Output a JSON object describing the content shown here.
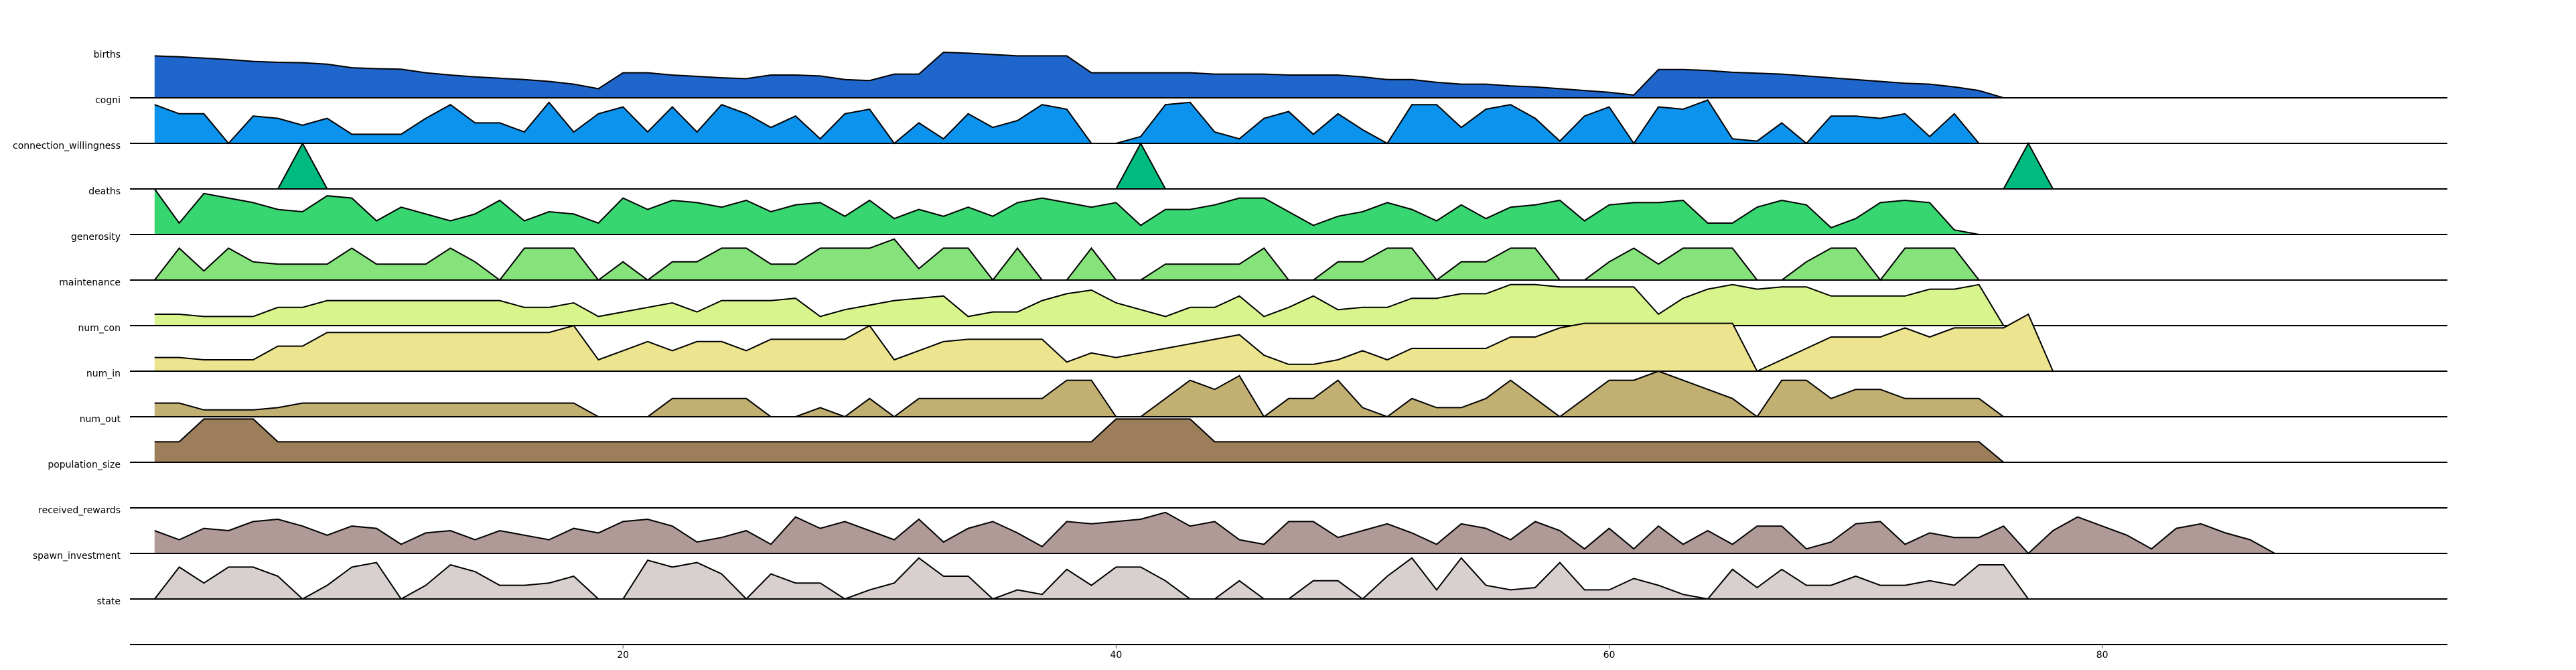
{
  "chart_data": {
    "type": "area",
    "title": "",
    "xlabel": "",
    "ylabel": "",
    "xlim": [
      0,
      94
    ],
    "x_ticks": [
      20,
      40,
      60,
      80
    ],
    "grid": false,
    "legend": "none",
    "series": [
      {
        "name": "births",
        "color": "#1f66cc",
        "values": [
          0.92,
          0.9,
          0.87,
          0.84,
          0.8,
          0.78,
          0.77,
          0.74,
          0.66,
          0.64,
          0.63,
          0.55,
          0.5,
          0.46,
          0.43,
          0.4,
          0.36,
          0.3,
          0.2,
          0.55,
          0.55,
          0.5,
          0.47,
          0.44,
          0.42,
          0.5,
          0.5,
          0.48,
          0.4,
          0.38,
          0.52,
          0.52,
          1.0,
          0.98,
          0.95,
          0.92,
          0.92,
          0.92,
          0.55,
          0.55,
          0.55,
          0.55,
          0.55,
          0.52,
          0.52,
          0.52,
          0.5,
          0.5,
          0.5,
          0.46,
          0.4,
          0.4,
          0.34,
          0.3,
          0.3,
          0.26,
          0.24,
          0.2,
          0.16,
          0.12,
          0.06,
          0.62,
          0.62,
          0.6,
          0.56,
          0.54,
          0.52,
          0.48,
          0.44,
          0.4,
          0.36,
          0.32,
          0.3,
          0.24,
          0.16,
          0.0
        ]
      },
      {
        "name": "cogni",
        "color": "#0b93ee",
        "values": [
          0.85,
          0.65,
          0.65,
          0.0,
          0.6,
          0.55,
          0.4,
          0.55,
          0.2,
          0.2,
          0.2,
          0.55,
          0.85,
          0.45,
          0.45,
          0.25,
          0.9,
          0.25,
          0.65,
          0.8,
          0.25,
          0.8,
          0.25,
          0.85,
          0.65,
          0.35,
          0.6,
          0.1,
          0.65,
          0.75,
          0.0,
          0.45,
          0.1,
          0.65,
          0.35,
          0.5,
          0.85,
          0.75,
          0.0,
          0.0,
          0.15,
          0.85,
          0.9,
          0.25,
          0.1,
          0.55,
          0.7,
          0.2,
          0.65,
          0.3,
          0.0,
          0.85,
          0.85,
          0.35,
          0.75,
          0.85,
          0.55,
          0.05,
          0.6,
          0.8,
          0.0,
          0.8,
          0.75,
          0.95,
          0.1,
          0.05,
          0.45,
          0.0,
          0.6,
          0.6,
          0.55,
          0.65,
          0.15,
          0.65,
          0.0
        ]
      },
      {
        "name": "connection_willingness",
        "color": "#00bb7f",
        "values": [
          0,
          0,
          0,
          0,
          0,
          0,
          1,
          0,
          0,
          0,
          0,
          0,
          0,
          0,
          0,
          0,
          0,
          0,
          0,
          0,
          0,
          0,
          0,
          0,
          0,
          0,
          0,
          0,
          0,
          0,
          0,
          0,
          0,
          0,
          0,
          0,
          0,
          0,
          0,
          0,
          1,
          0,
          0,
          0,
          0,
          0,
          0,
          0,
          0,
          0,
          0,
          0,
          0,
          0,
          0,
          0,
          0,
          0,
          0,
          0,
          0,
          0,
          0,
          0,
          0,
          0,
          0,
          0,
          0,
          0,
          0,
          0,
          0,
          0,
          0,
          0,
          1,
          0
        ]
      },
      {
        "name": "deaths",
        "color": "#37d671",
        "values": [
          1.0,
          0.25,
          0.9,
          0.8,
          0.7,
          0.55,
          0.5,
          0.85,
          0.8,
          0.3,
          0.6,
          0.45,
          0.3,
          0.45,
          0.75,
          0.3,
          0.5,
          0.45,
          0.25,
          0.8,
          0.55,
          0.75,
          0.7,
          0.6,
          0.75,
          0.5,
          0.65,
          0.7,
          0.4,
          0.75,
          0.35,
          0.55,
          0.4,
          0.6,
          0.4,
          0.7,
          0.8,
          0.7,
          0.6,
          0.7,
          0.2,
          0.55,
          0.55,
          0.65,
          0.8,
          0.8,
          0.5,
          0.2,
          0.4,
          0.5,
          0.7,
          0.55,
          0.3,
          0.65,
          0.35,
          0.6,
          0.65,
          0.75,
          0.3,
          0.65,
          0.7,
          0.7,
          0.75,
          0.25,
          0.25,
          0.6,
          0.75,
          0.65,
          0.15,
          0.35,
          0.7,
          0.75,
          0.7,
          0.1,
          0.0
        ]
      },
      {
        "name": "generosity",
        "color": "#86e37b",
        "values": [
          0.0,
          0.7,
          0.2,
          0.7,
          0.4,
          0.35,
          0.35,
          0.35,
          0.7,
          0.35,
          0.35,
          0.35,
          0.7,
          0.4,
          0.0,
          0.7,
          0.7,
          0.7,
          0.0,
          0.4,
          0.0,
          0.4,
          0.4,
          0.7,
          0.7,
          0.35,
          0.35,
          0.7,
          0.7,
          0.7,
          0.9,
          0.25,
          0.7,
          0.7,
          0.0,
          0.7,
          0.0,
          0.0,
          0.7,
          0.0,
          0.0,
          0.35,
          0.35,
          0.35,
          0.35,
          0.7,
          0.0,
          0.0,
          0.4,
          0.4,
          0.7,
          0.7,
          0.0,
          0.4,
          0.4,
          0.7,
          0.7,
          0.0,
          0.0,
          0.4,
          0.7,
          0.35,
          0.7,
          0.7,
          0.7,
          0.0,
          0.0,
          0.4,
          0.7,
          0.7,
          0.0,
          0.7,
          0.7,
          0.7,
          0.0
        ]
      },
      {
        "name": "maintenance",
        "color": "#d8f48d",
        "values": [
          0.25,
          0.25,
          0.2,
          0.2,
          0.2,
          0.4,
          0.4,
          0.55,
          0.55,
          0.55,
          0.55,
          0.55,
          0.55,
          0.55,
          0.55,
          0.4,
          0.4,
          0.5,
          0.2,
          0.3,
          0.4,
          0.5,
          0.3,
          0.55,
          0.55,
          0.55,
          0.6,
          0.2,
          0.35,
          0.45,
          0.55,
          0.6,
          0.65,
          0.2,
          0.3,
          0.3,
          0.55,
          0.7,
          0.78,
          0.5,
          0.35,
          0.2,
          0.4,
          0.4,
          0.65,
          0.2,
          0.4,
          0.65,
          0.35,
          0.4,
          0.4,
          0.6,
          0.6,
          0.7,
          0.7,
          0.9,
          0.9,
          0.85,
          0.85,
          0.85,
          0.85,
          0.25,
          0.6,
          0.8,
          0.9,
          0.8,
          0.85,
          0.85,
          0.65,
          0.65,
          0.65,
          0.65,
          0.8,
          0.8,
          0.9,
          0.0
        ]
      },
      {
        "name": "num_con",
        "color": "#ece48f",
        "values": [
          0.3,
          0.3,
          0.25,
          0.25,
          0.25,
          0.55,
          0.55,
          0.85,
          0.85,
          0.85,
          0.85,
          0.85,
          0.85,
          0.85,
          0.85,
          0.85,
          0.85,
          1.0,
          0.25,
          0.45,
          0.65,
          0.45,
          0.65,
          0.65,
          0.45,
          0.7,
          0.7,
          0.7,
          0.7,
          1.0,
          0.25,
          0.45,
          0.65,
          0.7,
          0.7,
          0.7,
          0.7,
          0.2,
          0.4,
          0.3,
          0.4,
          0.5,
          0.6,
          0.7,
          0.8,
          0.35,
          0.15,
          0.15,
          0.25,
          0.45,
          0.25,
          0.5,
          0.5,
          0.5,
          0.5,
          0.75,
          0.75,
          0.95,
          1.05,
          1.05,
          1.05,
          1.05,
          1.05,
          1.05,
          1.05,
          0.0,
          0.25,
          0.5,
          0.75,
          0.75,
          0.75,
          0.95,
          0.75,
          0.95,
          0.95,
          0.95,
          1.25,
          0.0
        ]
      },
      {
        "name": "num_in",
        "color": "#c2b073",
        "values": [
          0.3,
          0.3,
          0.15,
          0.15,
          0.15,
          0.2,
          0.3,
          0.3,
          0.3,
          0.3,
          0.3,
          0.3,
          0.3,
          0.3,
          0.3,
          0.3,
          0.3,
          0.3,
          0.0,
          0.0,
          0.0,
          0.4,
          0.4,
          0.4,
          0.4,
          0.0,
          0.0,
          0.2,
          0.0,
          0.4,
          0.0,
          0.4,
          0.4,
          0.4,
          0.4,
          0.4,
          0.4,
          0.8,
          0.8,
          0.0,
          0.0,
          0.4,
          0.8,
          0.6,
          0.9,
          0.0,
          0.4,
          0.4,
          0.8,
          0.2,
          0.0,
          0.4,
          0.2,
          0.2,
          0.4,
          0.8,
          0.4,
          0.0,
          0.4,
          0.8,
          0.8,
          1.0,
          0.8,
          0.6,
          0.4,
          0.0,
          0.8,
          0.8,
          0.4,
          0.6,
          0.6,
          0.4,
          0.4,
          0.4,
          0.4,
          0.0
        ]
      },
      {
        "name": "num_out",
        "color": "#9c7e5b",
        "values": [
          0.45,
          0.45,
          0.95,
          0.95,
          0.95,
          0.45,
          0.45,
          0.45,
          0.45,
          0.45,
          0.45,
          0.45,
          0.45,
          0.45,
          0.45,
          0.45,
          0.45,
          0.45,
          0.45,
          0.45,
          0.45,
          0.45,
          0.45,
          0.45,
          0.45,
          0.45,
          0.45,
          0.45,
          0.45,
          0.45,
          0.45,
          0.45,
          0.45,
          0.45,
          0.45,
          0.45,
          0.45,
          0.45,
          0.45,
          0.95,
          0.95,
          0.95,
          0.95,
          0.45,
          0.45,
          0.45,
          0.45,
          0.45,
          0.45,
          0.45,
          0.45,
          0.45,
          0.45,
          0.45,
          0.45,
          0.45,
          0.45,
          0.45,
          0.45,
          0.45,
          0.45,
          0.45,
          0.45,
          0.45,
          0.45,
          0.45,
          0.45,
          0.45,
          0.45,
          0.45,
          0.45,
          0.45,
          0.45,
          0.45,
          0.45,
          0.0
        ]
      },
      {
        "name": "population_size",
        "color": "#000000",
        "values": []
      },
      {
        "name": "received_rewards",
        "color": "#b09a98",
        "values": [
          0.5,
          0.3,
          0.55,
          0.5,
          0.7,
          0.75,
          0.6,
          0.4,
          0.6,
          0.55,
          0.2,
          0.45,
          0.5,
          0.3,
          0.5,
          0.4,
          0.3,
          0.55,
          0.45,
          0.7,
          0.75,
          0.6,
          0.25,
          0.35,
          0.5,
          0.2,
          0.8,
          0.55,
          0.7,
          0.5,
          0.3,
          0.75,
          0.25,
          0.55,
          0.7,
          0.45,
          0.15,
          0.7,
          0.65,
          0.7,
          0.75,
          0.9,
          0.6,
          0.7,
          0.3,
          0.2,
          0.7,
          0.7,
          0.35,
          0.5,
          0.65,
          0.45,
          0.2,
          0.65,
          0.55,
          0.3,
          0.7,
          0.5,
          0.1,
          0.55,
          0.1,
          0.6,
          0.2,
          0.5,
          0.2,
          0.6,
          0.6,
          0.1,
          0.25,
          0.65,
          0.7,
          0.2,
          0.45,
          0.35,
          0.35,
          0.6,
          0.0,
          0.5,
          0.8,
          0.6,
          0.4,
          0.1,
          0.55,
          0.65,
          0.45,
          0.3,
          0.0
        ]
      },
      {
        "name": "spawn_investment",
        "color": "#d8d0ce",
        "values": [
          0.0,
          0.7,
          0.35,
          0.7,
          0.7,
          0.5,
          0.0,
          0.3,
          0.7,
          0.8,
          0.0,
          0.3,
          0.75,
          0.6,
          0.3,
          0.3,
          0.35,
          0.5,
          0.0,
          0.0,
          0.85,
          0.7,
          0.8,
          0.55,
          0.0,
          0.55,
          0.35,
          0.35,
          0.0,
          0.2,
          0.35,
          0.9,
          0.5,
          0.5,
          0.0,
          0.2,
          0.1,
          0.65,
          0.3,
          0.7,
          0.7,
          0.4,
          0.0,
          0.0,
          0.4,
          0.0,
          0.0,
          0.4,
          0.4,
          0.0,
          0.5,
          0.9,
          0.2,
          0.9,
          0.3,
          0.2,
          0.25,
          0.8,
          0.2,
          0.2,
          0.45,
          0.3,
          0.1,
          0.0,
          0.65,
          0.25,
          0.65,
          0.3,
          0.3,
          0.5,
          0.3,
          0.3,
          0.4,
          0.3,
          0.75,
          0.75,
          0.0
        ]
      },
      {
        "name": "state",
        "color": "#000000",
        "values": []
      }
    ]
  }
}
